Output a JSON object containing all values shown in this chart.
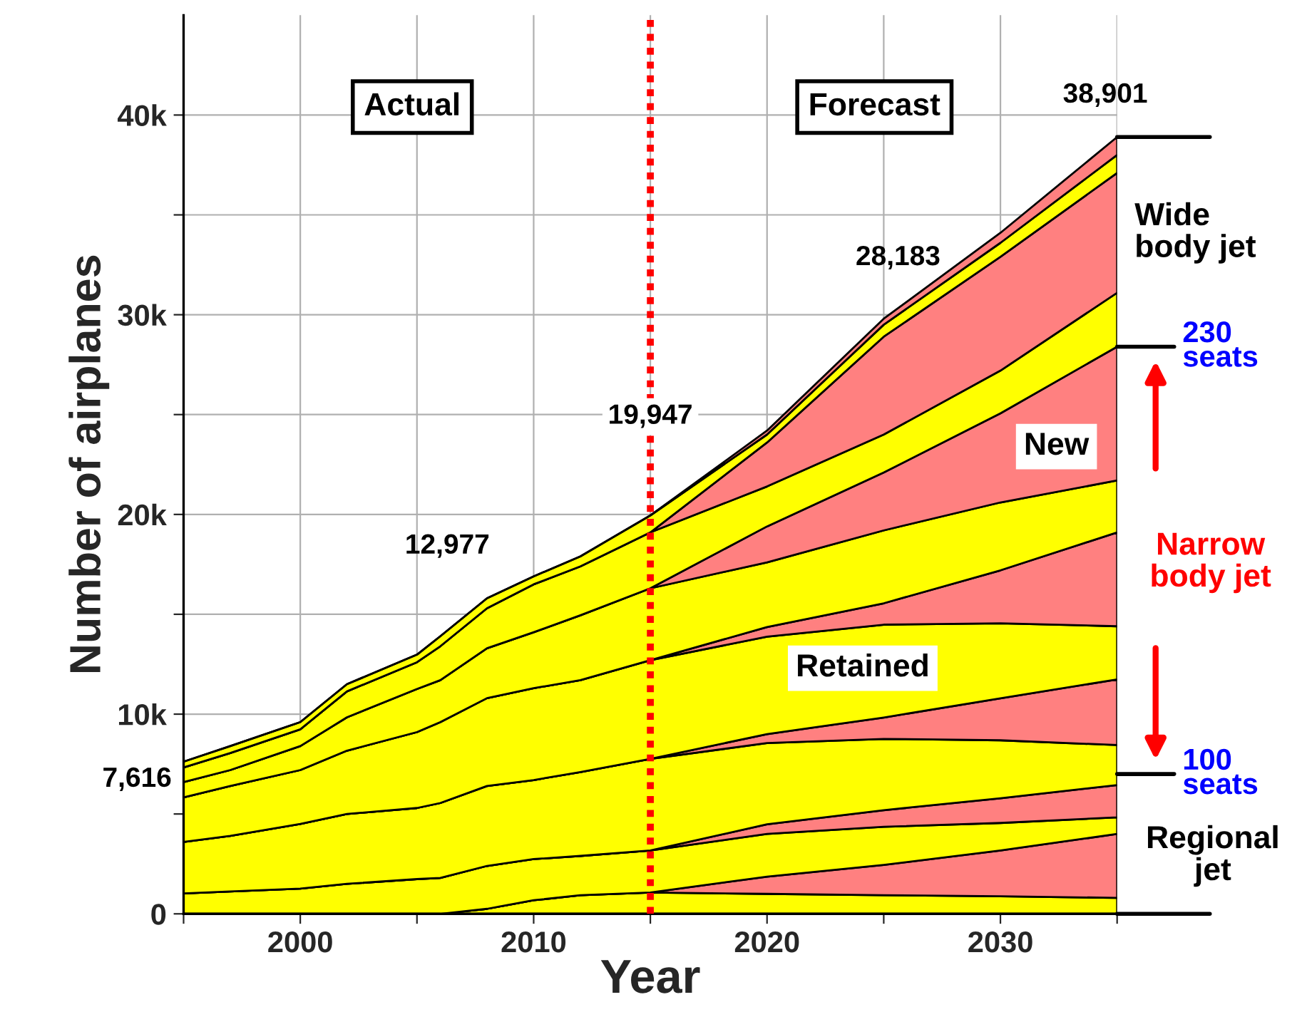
{
  "chart_data": {
    "type": "area",
    "stacked": true,
    "xlabel": "Year",
    "ylabel": "Number of airplanes",
    "x": [
      1995,
      1997,
      2000,
      2002,
      2005,
      2006,
      2008,
      2010,
      2012,
      2015,
      2020,
      2025,
      2030,
      2035
    ],
    "series": [
      {
        "color": "#ffff00",
        "values": [
          0,
          0,
          0,
          0,
          0,
          0,
          0.25,
          0.68,
          0.93,
          1.07,
          1.0,
          0.93,
          0.88,
          0.8
        ]
      },
      {
        "color": "#ff8080",
        "values": [
          0,
          0,
          0,
          0,
          0,
          0,
          0,
          0,
          0,
          0,
          0.86,
          1.52,
          2.29,
          3.2
        ]
      },
      {
        "color": "#ffff00",
        "values": [
          1.02,
          1.12,
          1.26,
          1.5,
          1.74,
          1.8,
          2.15,
          2.06,
          1.97,
          2.1,
          2.14,
          1.91,
          1.38,
          0.83
        ]
      },
      {
        "color": "#ff8080",
        "values": [
          0,
          0,
          0,
          0,
          0,
          0,
          0,
          0,
          0,
          0,
          0.48,
          0.83,
          1.24,
          1.62
        ]
      },
      {
        "color": "#ffff00",
        "values": [
          2.58,
          2.78,
          3.24,
          3.5,
          3.56,
          3.75,
          4.0,
          3.96,
          4.2,
          4.59,
          4.07,
          3.57,
          2.9,
          2.0
        ]
      },
      {
        "color": "#ff8080",
        "values": [
          0,
          0,
          0,
          0,
          0,
          0,
          0,
          0,
          0,
          0,
          0.45,
          1.07,
          2.1,
          3.29
        ]
      },
      {
        "color": "#ffff00",
        "values": [
          2.23,
          2.5,
          2.7,
          3.17,
          3.8,
          4.05,
          4.4,
          4.6,
          4.6,
          4.94,
          4.88,
          4.65,
          3.76,
          2.66
        ]
      },
      {
        "color": "#ff8080",
        "values": [
          0,
          0,
          0,
          0,
          0,
          0,
          0,
          0,
          0,
          0,
          0.48,
          1.07,
          2.65,
          4.7
        ]
      },
      {
        "color": "#ffff00",
        "values": [
          0.77,
          0.8,
          1.2,
          1.67,
          2.16,
          2.1,
          2.5,
          2.8,
          3.25,
          3.6,
          3.24,
          3.65,
          3.4,
          2.6
        ]
      },
      {
        "color": "#ff8080",
        "values": [
          0,
          0,
          0,
          0,
          0,
          0,
          0,
          0,
          0,
          0,
          1.8,
          2.9,
          4.46,
          6.7
        ]
      },
      {
        "color": "#ffff00",
        "values": [
          0.73,
          0.85,
          0.84,
          1.3,
          1.34,
          1.7,
          2.0,
          2.4,
          2.45,
          2.8,
          2.0,
          1.9,
          2.14,
          2.7
        ]
      },
      {
        "color": "#ff8080",
        "values": [
          0,
          0,
          0,
          0,
          0,
          0,
          0,
          0,
          0,
          0,
          2.2,
          4.9,
          5.7,
          6.0
        ]
      },
      {
        "color": "#ffff00",
        "values": [
          0.29,
          0.35,
          0.36,
          0.36,
          0.38,
          0.5,
          0.5,
          0.4,
          0.5,
          0.85,
          0.4,
          0.6,
          0.7,
          0.9
        ]
      },
      {
        "color": "#ff8080",
        "values": [
          0,
          0,
          0,
          0,
          0,
          0,
          0,
          0,
          0,
          0,
          0.2,
          0.3,
          0.5,
          0.9
        ]
      }
    ],
    "xlim": [
      1995,
      2035
    ],
    "ylim": [
      0,
      45
    ],
    "xticks": [
      {
        "value": 1995,
        "label": null
      },
      2000,
      {
        "value": 2005,
        "label": null
      },
      2010,
      {
        "value": 2015,
        "label": null
      },
      2020,
      {
        "value": 2025,
        "label": null
      },
      2030,
      {
        "value": 2035,
        "label": null
      }
    ],
    "yticks": [
      0,
      {
        "value": 5,
        "label": null
      },
      {
        "value": 10,
        "label": "10k"
      },
      {
        "value": 15,
        "label": null
      },
      {
        "value": 20,
        "label": "20k"
      },
      {
        "value": 25,
        "label": null
      },
      {
        "value": 30,
        "label": "30k"
      },
      {
        "value": 35,
        "label": null
      },
      {
        "value": 40,
        "label": "40k"
      }
    ],
    "grid": true,
    "ref_lines": [
      {
        "axis": "x",
        "value": 2015,
        "color": "#ff0000",
        "line_style": "dotted"
      }
    ],
    "annotations": [
      "Actual",
      "Forecast",
      {
        "text": "7,616",
        "x": 1995,
        "y": 7.616
      },
      "12,977",
      "19,947",
      {
        "text": "28,183",
        "x": 2024,
        "y": 28.183
      },
      {
        "text": "38,901",
        "x": 2035,
        "y": 38.901
      },
      "New",
      "Retained",
      "Wide\nbody jet",
      "230\nseats",
      "Narrow\nbody jet",
      "100\nseats",
      "Regional\njet"
    ]
  }
}
